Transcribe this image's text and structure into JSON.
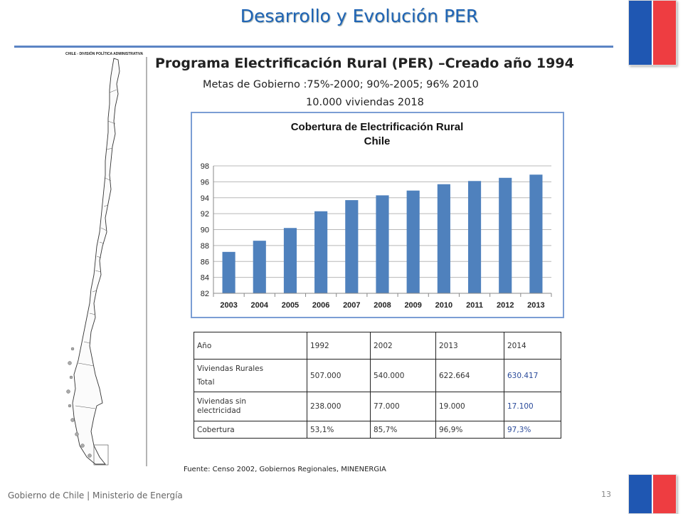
{
  "slide": {
    "title": "Desarrollo y Evolución PER",
    "heading": "Programa Electrificación Rural (PER) –Creado año 1994",
    "goals": "Metas de Gobierno :75%-2000; 90%-2005; 96% 2010",
    "homes_2018": "10.000 viviendas 2018",
    "source": "Fuente: Censo 2002, Gobiernos Regionales, MINENERGIA",
    "footer": "Gobierno de Chile | Ministerio de Energía",
    "page_number": "13"
  },
  "map": {
    "label": "CHILE - DIVISIÓN POLÍTICA ADMINISTRATIVA"
  },
  "colors": {
    "title_blue": "#1f64b5",
    "flag_blue": "#1f57b2",
    "flag_red": "#ee3d41",
    "bar_blue": "#4f81bd"
  },
  "chart_data": {
    "type": "bar",
    "title": "Cobertura de Electrificación Rural",
    "subtitle": "Chile",
    "categories": [
      "2003",
      "2004",
      "2005",
      "2006",
      "2007",
      "2008",
      "2009",
      "2010",
      "2011",
      "2012",
      "2013"
    ],
    "values": [
      87.2,
      88.6,
      90.2,
      92.3,
      93.7,
      94.3,
      94.9,
      95.7,
      96.1,
      96.5,
      96.9
    ],
    "ylim": [
      82,
      98
    ],
    "yticks": [
      82,
      84,
      86,
      88,
      90,
      92,
      94,
      96,
      98
    ],
    "grid": true,
    "legend": "none"
  },
  "table": {
    "header": [
      "Año",
      "1992",
      "2002",
      "2013",
      "2014"
    ],
    "rows": [
      {
        "label_lines": [
          "Viviendas Rurales",
          "Total"
        ],
        "values": [
          "507.000",
          "540.000",
          "622.664",
          "630.417"
        ]
      },
      {
        "label_lines": [
          "Viviendas sin",
          "electricidad"
        ],
        "values": [
          "238.000",
          "77.000",
          "19.000",
          "17.100"
        ]
      },
      {
        "label_lines": [
          "Cobertura"
        ],
        "values": [
          "53,1%",
          "85,7%",
          "96,9%",
          "97,3%"
        ]
      }
    ]
  }
}
